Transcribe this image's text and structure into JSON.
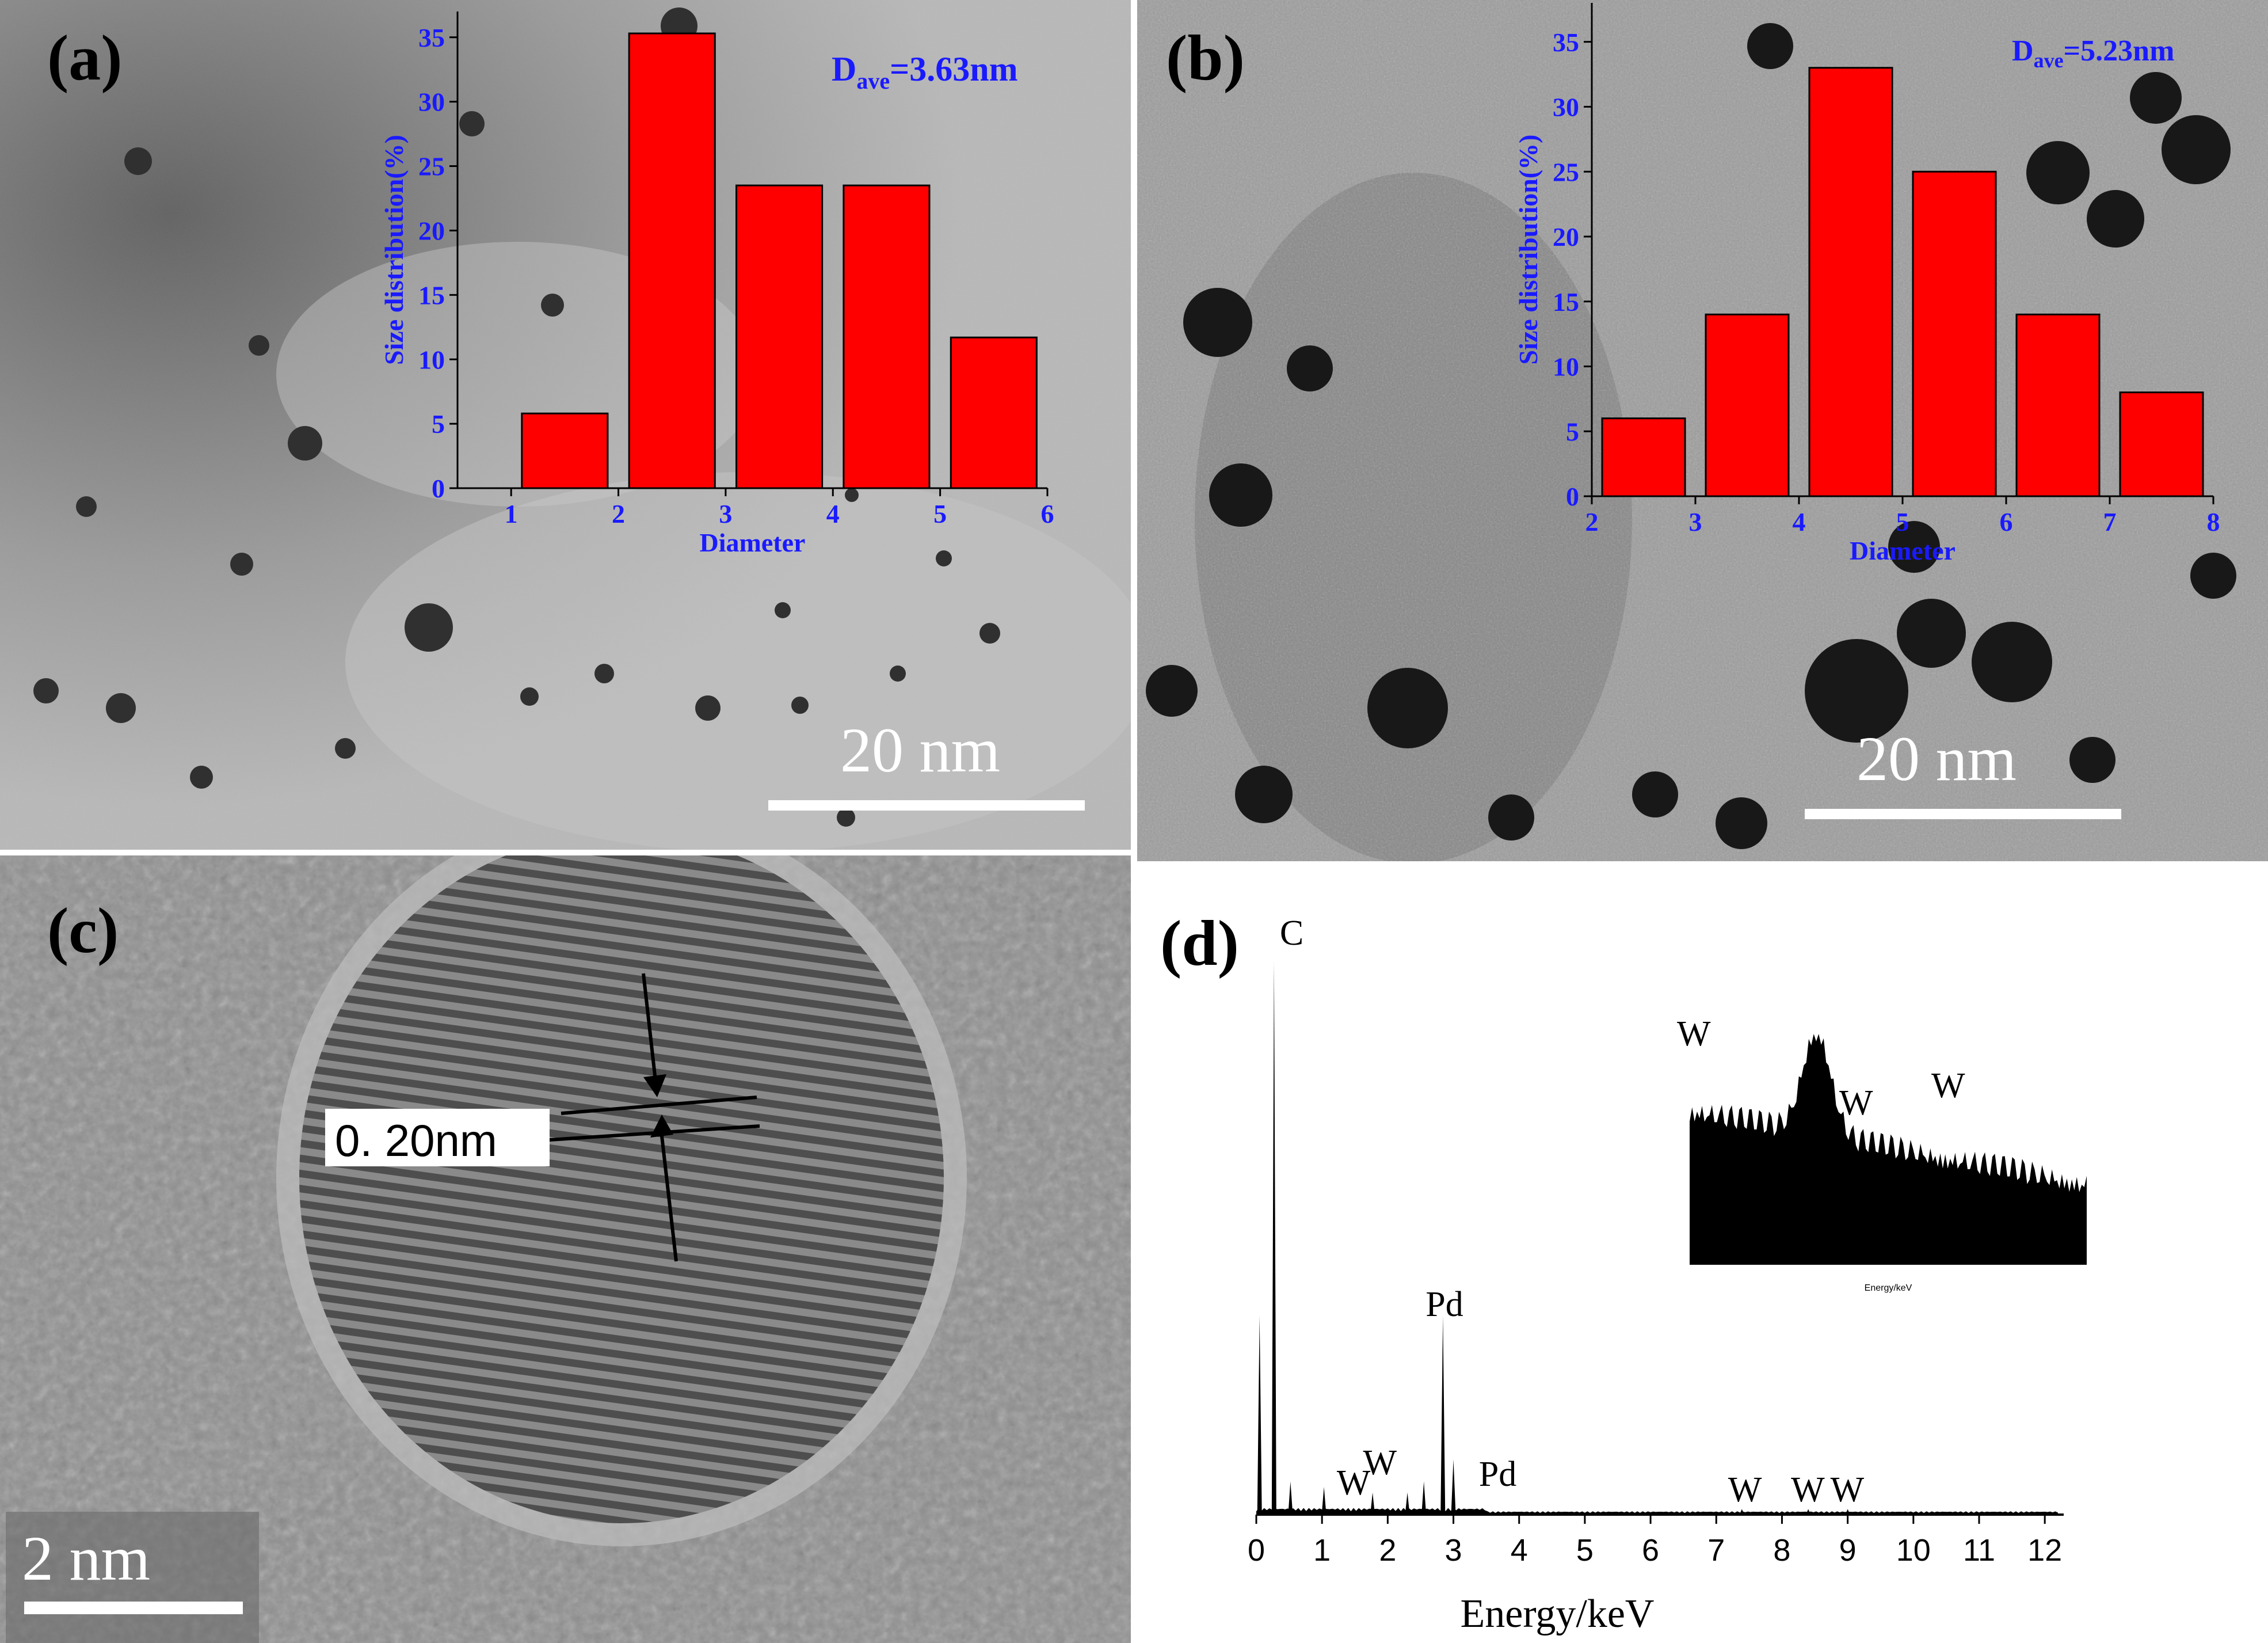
{
  "panels": {
    "a": {
      "label": "(a)",
      "scale_bar": "20 nm",
      "inset_note": "D",
      "inset_note_sub": "ave",
      "inset_note_value": "=3.63nm",
      "xlabel": "Diameter",
      "ylabel": "Size distribution(%)",
      "colors": {
        "bar": "#ff0000",
        "axis": "#1a1aff",
        "bg_light": "#b9b9b9",
        "bg_dark": "#6a6a6a"
      }
    },
    "b": {
      "label": "(b)",
      "scale_bar": "20 nm",
      "inset_note": "D",
      "inset_note_sub": "ave",
      "inset_note_value": "=5.23nm",
      "xlabel": "Diameter",
      "ylabel": "Size distribution(%)",
      "colors": {
        "bar": "#ff0000",
        "axis": "#1a1aff",
        "bg_light": "#a6a6a6",
        "bg_dark": "#2a2a2a"
      }
    },
    "c": {
      "label": "(c)",
      "scale_bar": "2 nm",
      "annotation": "0. 20nm",
      "colors": {
        "bg": "#8c8c8c",
        "particle": "#606060"
      }
    },
    "d": {
      "label": "(d)",
      "xlabel": "Energy/keV",
      "peak_labels": [
        "C",
        "Pd",
        "Pd",
        "W",
        "W",
        "W",
        "W",
        "W",
        "W",
        "W",
        "W"
      ],
      "inset_xlabel": "Energy/keV",
      "colors": {
        "spectrum": "#000000"
      }
    }
  },
  "chart_data": [
    {
      "type": "bar",
      "panel": "a",
      "x": [
        1.5,
        2.5,
        3.5,
        4.5,
        5.5
      ],
      "values": [
        5.8,
        35.3,
        23.5,
        23.5,
        11.7
      ],
      "bin_width": 0.8,
      "xlim": [
        0.5,
        6
      ],
      "ylim": [
        0,
        37
      ],
      "xticks": [
        1,
        2,
        3,
        4,
        5,
        6
      ],
      "yticks": [
        0,
        5,
        10,
        15,
        20,
        25,
        30,
        35
      ],
      "xlabel": "Diameter",
      "ylabel": "Size distribution(%)"
    },
    {
      "type": "bar",
      "panel": "b",
      "x": [
        2.5,
        3.5,
        4.5,
        5.5,
        6.5,
        7.5
      ],
      "values": [
        6.0,
        14.0,
        33.0,
        25.0,
        14.0,
        8.0
      ],
      "bin_width": 0.8,
      "xlim": [
        2,
        8
      ],
      "ylim": [
        0,
        38
      ],
      "xticks": [
        2,
        3,
        4,
        5,
        6,
        7,
        8
      ],
      "yticks": [
        0,
        5,
        10,
        15,
        20,
        25,
        30,
        35
      ],
      "xlabel": "Diameter",
      "ylabel": "Size distribution(%)"
    },
    {
      "type": "line",
      "panel": "d",
      "xlabel": "Energy/keV",
      "xlim": [
        0,
        12.2
      ],
      "ylim": [
        0,
        1
      ],
      "xticks": [
        0,
        1,
        2,
        3,
        4,
        5,
        6,
        7,
        8,
        9,
        10,
        11,
        12
      ],
      "peaks": [
        {
          "x": 0.05,
          "y": 0.36
        },
        {
          "x": 0.27,
          "y": 1.0
        },
        {
          "x": 0.52,
          "y": 0.06
        },
        {
          "x": 1.03,
          "y": 0.05
        },
        {
          "x": 1.77,
          "y": 0.04
        },
        {
          "x": 2.3,
          "y": 0.04
        },
        {
          "x": 2.55,
          "y": 0.06
        },
        {
          "x": 2.84,
          "y": 0.36
        },
        {
          "x": 3.0,
          "y": 0.1
        },
        {
          "x": 7.39,
          "y": 0.01
        },
        {
          "x": 8.4,
          "y": 0.01
        },
        {
          "x": 9.0,
          "y": 0.01
        }
      ],
      "peak_labels": [
        {
          "text": "C",
          "x": 0.27
        },
        {
          "text": "Pd",
          "x": 2.84
        },
        {
          "text": "Pd",
          "x": 3.3
        },
        {
          "text": "W",
          "x": 1.4
        },
        {
          "text": "W",
          "x": 1.8
        },
        {
          "text": "W",
          "x": 7.4
        },
        {
          "text": "W",
          "x": 8.4
        },
        {
          "text": "W",
          "x": 9.0
        }
      ],
      "inset": {
        "xlim": [
          7,
          10
        ],
        "labels": [
          "W",
          "W",
          "W"
        ]
      }
    }
  ]
}
